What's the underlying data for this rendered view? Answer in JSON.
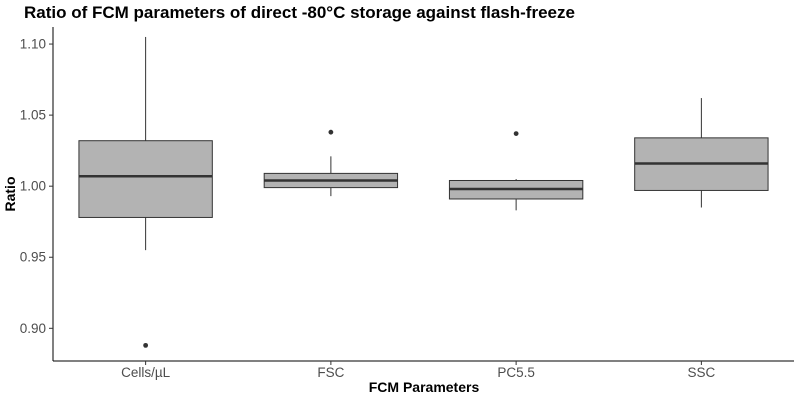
{
  "chart_data": {
    "type": "boxplot",
    "title": "Ratio of FCM parameters of direct -80°C storage against flash-freeze",
    "xlabel": "FCM Parameters",
    "ylabel": "Ratio",
    "ylim": [
      0.877,
      1.112
    ],
    "yticks": [
      0.9,
      0.95,
      1.0,
      1.05,
      1.1
    ],
    "ytick_labels": [
      "0.90",
      "0.95",
      "1.00",
      "1.05",
      "1.10"
    ],
    "categories": [
      "Cells/µL",
      "FSC",
      "PC5.5",
      "SSC"
    ],
    "grid": false,
    "box_fill": "#b3b3b3",
    "line_color": "#333333",
    "boxes": [
      {
        "category": "Cells/µL",
        "whisker_low": 0.955,
        "q1": 0.978,
        "median": 1.007,
        "q3": 1.032,
        "whisker_high": 1.105,
        "outliers": [
          0.888
        ]
      },
      {
        "category": "FSC",
        "whisker_low": 0.993,
        "q1": 0.999,
        "median": 1.004,
        "q3": 1.009,
        "whisker_high": 1.021,
        "outliers": [
          1.038
        ]
      },
      {
        "category": "PC5.5",
        "whisker_low": 0.983,
        "q1": 0.991,
        "median": 0.998,
        "q3": 1.004,
        "whisker_high": 1.005,
        "outliers": [
          1.037
        ]
      },
      {
        "category": "SSC",
        "whisker_low": 0.985,
        "q1": 0.997,
        "median": 1.016,
        "q3": 1.034,
        "whisker_high": 1.062,
        "outliers": []
      }
    ]
  }
}
